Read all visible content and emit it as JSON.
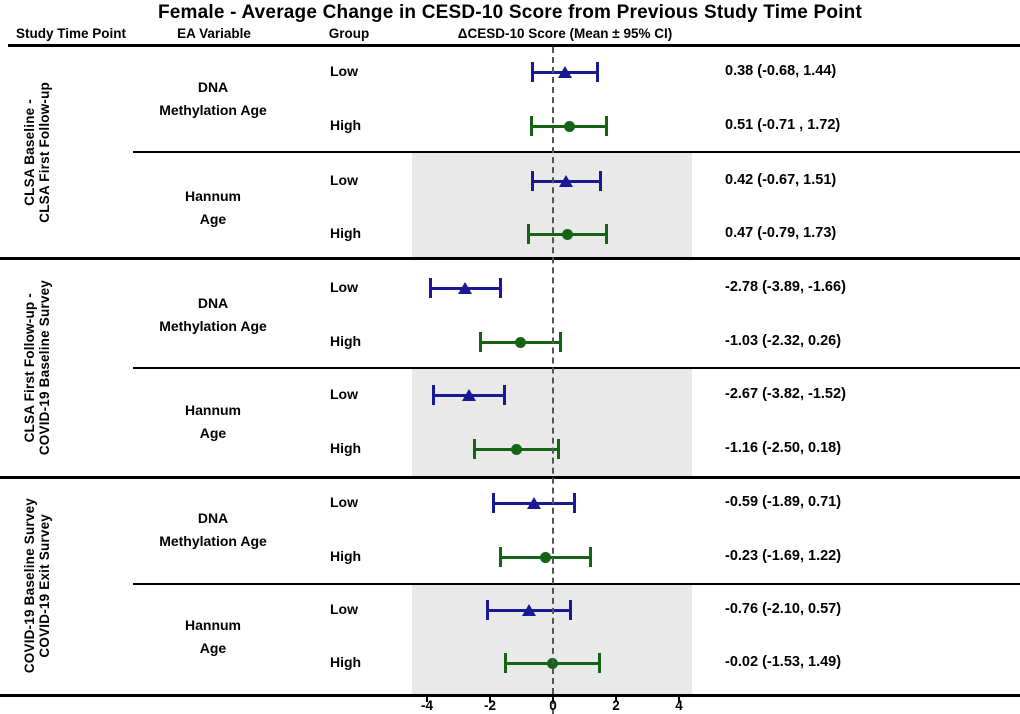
{
  "title": "Female - Average Change in CESD-10 Score from Previous Study Time Point",
  "columns": {
    "study_time_point": "Study Time Point",
    "ea_variable": "EA Variable",
    "group": "Group",
    "score": "ΔCESD-10 Score (Mean ± 95% CI)"
  },
  "colors": {
    "low_marker": "#191993",
    "high_marker": "#156415",
    "shaded_region": "#e9e9e9",
    "zero_line": "#555555",
    "lines": "#000000"
  },
  "chart_data": {
    "type": "forest",
    "x_ticks": [
      -4,
      -2,
      0,
      2,
      4
    ],
    "xlim": [
      -4.5,
      4.5
    ],
    "zero_reference": 0,
    "grid": false,
    "legend": "none",
    "marker_legend": {
      "Low": "navy triangle",
      "High": "dark-green circle"
    },
    "sections": [
      {
        "study_time_point": [
          "CLSA Baseline -",
          "CLSA First Follow-up"
        ],
        "subsections": [
          {
            "ea_variable": [
              "DNA",
              "Methylation Age"
            ],
            "shaded": false,
            "rows": [
              {
                "group": "Low",
                "mean": 0.38,
                "ci_low": -0.68,
                "ci_high": 1.44,
                "label": "0.38 (-0.68, 1.44)",
                "marker": "triangle"
              },
              {
                "group": "High",
                "mean": 0.51,
                "ci_low": -0.71,
                "ci_high": 1.72,
                "label": "0.51 (-0.71 , 1.72)",
                "marker": "circle"
              }
            ]
          },
          {
            "ea_variable": [
              "Hannum",
              "Age"
            ],
            "shaded": true,
            "rows": [
              {
                "group": "Low",
                "mean": 0.42,
                "ci_low": -0.67,
                "ci_high": 1.51,
                "label": "0.42 (-0.67, 1.51)",
                "marker": "triangle"
              },
              {
                "group": "High",
                "mean": 0.47,
                "ci_low": -0.79,
                "ci_high": 1.73,
                "label": "0.47 (-0.79, 1.73)",
                "marker": "circle"
              }
            ]
          }
        ]
      },
      {
        "study_time_point": [
          "CLSA First Follow-up -",
          "COVID-19 Baseline Survey"
        ],
        "subsections": [
          {
            "ea_variable": [
              "DNA",
              "Methylation Age"
            ],
            "shaded": false,
            "rows": [
              {
                "group": "Low",
                "mean": -2.78,
                "ci_low": -3.89,
                "ci_high": -1.66,
                "label": "-2.78 (-3.89, -1.66)",
                "marker": "triangle"
              },
              {
                "group": "High",
                "mean": -1.03,
                "ci_low": -2.32,
                "ci_high": 0.26,
                "label": "-1.03 (-2.32, 0.26)",
                "marker": "circle"
              }
            ]
          },
          {
            "ea_variable": [
              "Hannum",
              "Age"
            ],
            "shaded": true,
            "rows": [
              {
                "group": "Low",
                "mean": -2.67,
                "ci_low": -3.82,
                "ci_high": -1.52,
                "label": "-2.67 (-3.82, -1.52)",
                "marker": "triangle"
              },
              {
                "group": "High",
                "mean": -1.16,
                "ci_low": -2.5,
                "ci_high": 0.18,
                "label": "-1.16 (-2.50, 0.18)",
                "marker": "circle"
              }
            ]
          }
        ]
      },
      {
        "study_time_point": [
          "COVID-19 Baseline Survey",
          "COVID-19 Exit Survey"
        ],
        "subsections": [
          {
            "ea_variable": [
              "DNA",
              "Methylation Age"
            ],
            "shaded": false,
            "rows": [
              {
                "group": "Low",
                "mean": -0.59,
                "ci_low": -1.89,
                "ci_high": 0.71,
                "label": "-0.59 (-1.89, 0.71)",
                "marker": "triangle"
              },
              {
                "group": "High",
                "mean": -0.23,
                "ci_low": -1.69,
                "ci_high": 1.22,
                "label": "-0.23 (-1.69, 1.22)",
                "marker": "circle"
              }
            ]
          },
          {
            "ea_variable": [
              "Hannum",
              "Age"
            ],
            "shaded": true,
            "rows": [
              {
                "group": "Low",
                "mean": -0.76,
                "ci_low": -2.1,
                "ci_high": 0.57,
                "label": "-0.76 (-2.10, 0.57)",
                "marker": "triangle"
              },
              {
                "group": "High",
                "mean": -0.02,
                "ci_low": -1.53,
                "ci_high": 1.49,
                "label": "-0.02 (-1.53, 1.49)",
                "marker": "circle"
              }
            ]
          }
        ]
      }
    ]
  }
}
